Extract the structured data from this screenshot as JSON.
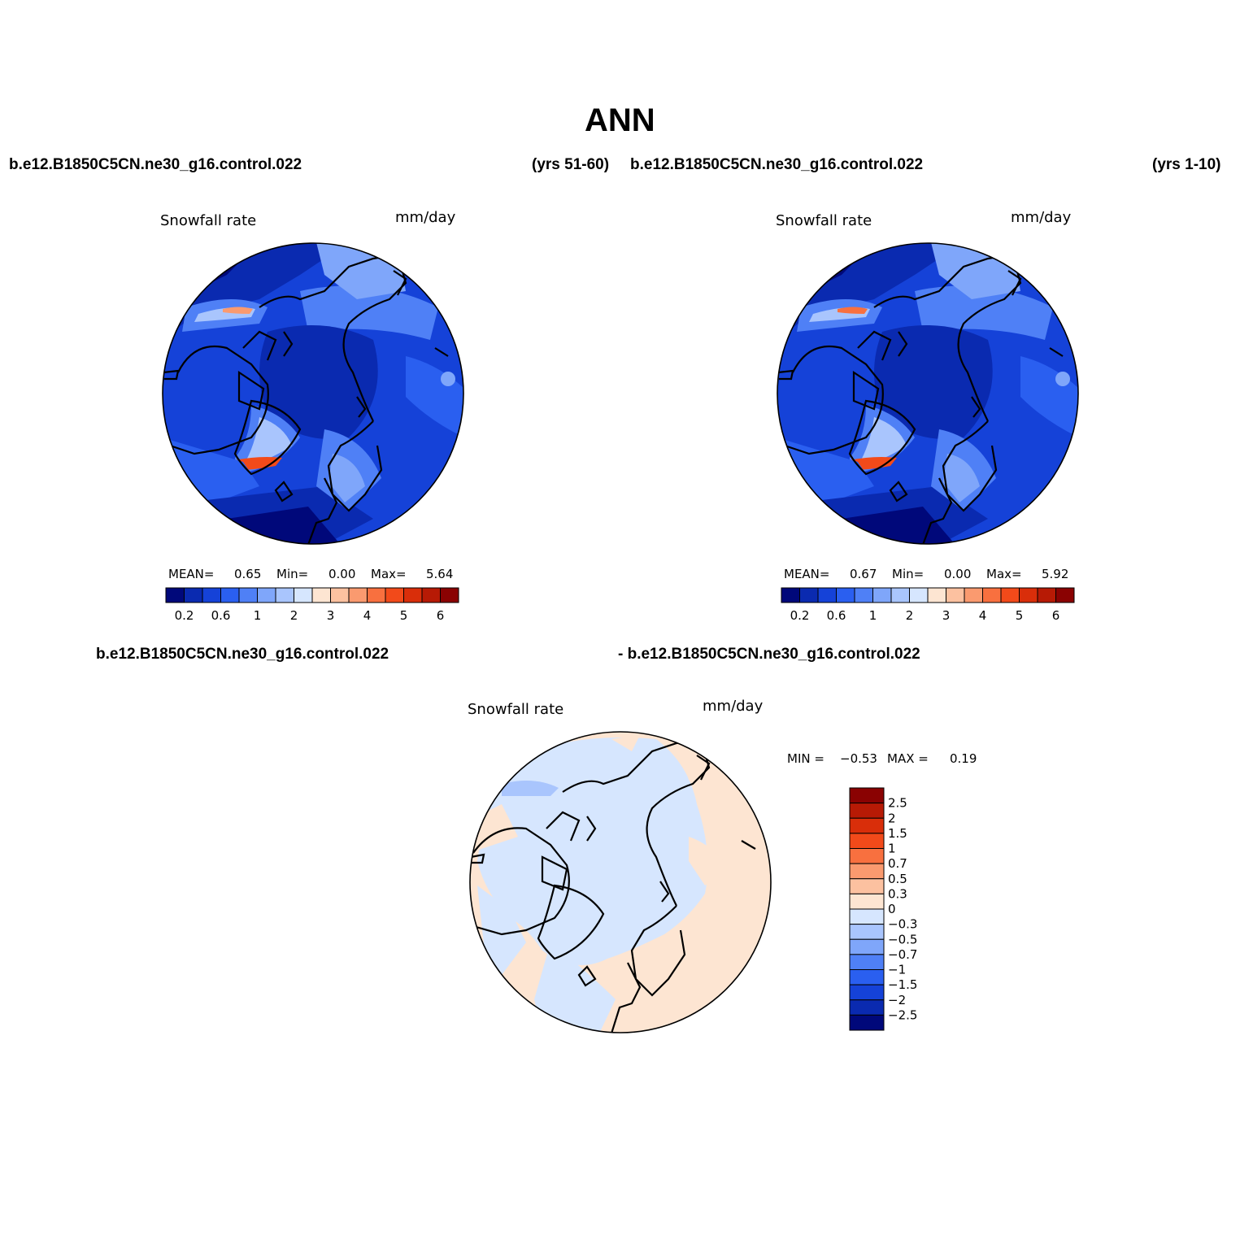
{
  "title": "ANN",
  "panels": [
    {
      "case_name": "b.e12.B1850C5CN.ne30_g16.control.022",
      "years": "(yrs 51-60)",
      "variable": "Snowfall rate",
      "units": "mm/day",
      "stats": {
        "mean_label": "MEAN=",
        "mean": "0.65",
        "min_label": "Min=",
        "min": "0.00",
        "max_label": "Max=",
        "max": "5.64"
      }
    },
    {
      "case_name": "b.e12.B1850C5CN.ne30_g16.control.022",
      "years": "(yrs 1-10)",
      "variable": "Snowfall rate",
      "units": "mm/day",
      "stats": {
        "mean_label": "MEAN=",
        "mean": "0.67",
        "min_label": "Min=",
        "min": "0.00",
        "max_label": "Max=",
        "max": "5.92"
      }
    },
    {
      "case_name_left": "b.e12.B1850C5CN.ne30_g16.control.022",
      "case_name_right": "- b.e12.B1850C5CN.ne30_g16.control.022",
      "variable": "Snowfall rate",
      "units": "mm/day",
      "minmax": {
        "min_label": "MIN =",
        "min": "−0.53",
        "max_label": "MAX =",
        "max": "0.19"
      }
    }
  ],
  "colorbar_abs": {
    "colors": [
      "#00087a",
      "#0a2ab0",
      "#1542d8",
      "#2a5ff0",
      "#4f80f6",
      "#7fa6fa",
      "#a9c5fd",
      "#d6e6fe",
      "#fde5d2",
      "#fcc1a0",
      "#fa9a6f",
      "#f8703f",
      "#f24a1a",
      "#d92e0a",
      "#b71a05",
      "#8a0202"
    ],
    "tick_labels": [
      "0.2",
      "0.6",
      "1",
      "2",
      "3",
      "4",
      "5",
      "6"
    ]
  },
  "colorbar_diff": {
    "colors": [
      "#00087a",
      "#0a2ab0",
      "#1542d8",
      "#2a5ff0",
      "#4f80f6",
      "#7fa6fa",
      "#a9c5fd",
      "#d6e6fe",
      "#fde5d2",
      "#fcc1a0",
      "#fa9a6f",
      "#f8703f",
      "#f24a1a",
      "#d92e0a",
      "#b71a05",
      "#8a0202"
    ],
    "tick_labels": [
      "2.5",
      "2",
      "1.5",
      "1",
      "0.7",
      "0.5",
      "0.3",
      "0",
      "−0.3",
      "−0.5",
      "−0.7",
      "−1",
      "−1.5",
      "−2",
      "−2.5"
    ]
  }
}
